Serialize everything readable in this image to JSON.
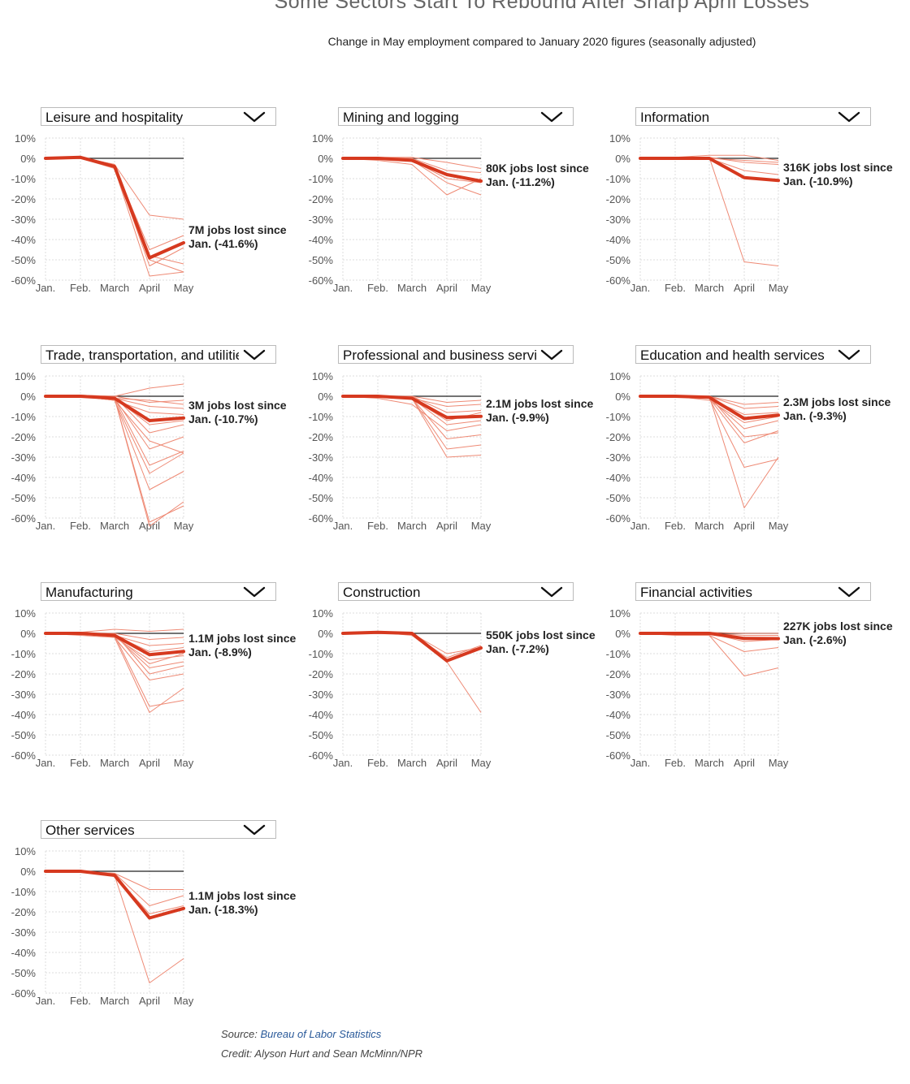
{
  "title": "Some Sectors Start To Rebound After Sharp April Losses",
  "subtitle": "Change in May employment compared to January 2020 figures (seasonally adjusted)",
  "colors": {
    "highlight": "#d6391f",
    "thin": "#ee8a75",
    "baseline": "#222222",
    "grid": "#dddddd",
    "axis_text": "#555555"
  },
  "icons": {
    "dropdown": "chevron-down-icon"
  },
  "source": {
    "label": "Source:",
    "link_text": "Bureau of Labor Statistics"
  },
  "credit": "Credit: Alyson Hurt and Sean McMinn/NPR",
  "chart_data": [
    {
      "type": "line",
      "dropdown_label": "Leisure and hospitality",
      "x": [
        "Jan.",
        "Feb.",
        "March",
        "April",
        "May"
      ],
      "y_ticks": [
        "10%",
        "0%",
        "-10%",
        "-20%",
        "-30%",
        "-40%",
        "-50%",
        "-60%"
      ],
      "ylim": [
        -60,
        10
      ],
      "annotation": {
        "line1": "7M jobs lost since",
        "line2": "Jan. (-41.6%)"
      },
      "highlight": [
        0,
        0.5,
        -4,
        -49,
        -41.6
      ],
      "subsectors": [
        [
          0,
          0.5,
          -3,
          -28,
          -30
        ],
        [
          0,
          0,
          -4,
          -45,
          -38
        ],
        [
          0,
          0.5,
          -4,
          -50,
          -56
        ],
        [
          0,
          0,
          -5,
          -58,
          -56
        ],
        [
          0,
          0.5,
          -3,
          -48,
          -52
        ],
        [
          0,
          0,
          -4,
          -53,
          -44
        ]
      ]
    },
    {
      "type": "line",
      "dropdown_label": "Mining and logging",
      "x": [
        "Jan.",
        "Feb.",
        "March",
        "April",
        "May"
      ],
      "y_ticks": [
        "10%",
        "0%",
        "-10%",
        "-20%",
        "-30%",
        "-40%",
        "-50%",
        "-60%"
      ],
      "ylim": [
        -60,
        10
      ],
      "annotation": {
        "line1": "80K jobs lost since",
        "line2": "Jan. (-11.2%)"
      },
      "highlight": [
        0,
        0,
        -1,
        -8,
        -11.2
      ],
      "subsectors": [
        [
          0,
          0.5,
          0.5,
          -2,
          -5
        ],
        [
          0,
          -1,
          -3,
          -18,
          -10
        ],
        [
          0,
          0,
          -1,
          -12,
          -18
        ],
        [
          0,
          0.5,
          0,
          -6,
          -7
        ],
        [
          0,
          0,
          -1,
          -10,
          -12
        ]
      ]
    },
    {
      "type": "line",
      "dropdown_label": "Information",
      "x": [
        "Jan.",
        "Feb.",
        "March",
        "April",
        "May"
      ],
      "y_ticks": [
        "10%",
        "0%",
        "-10%",
        "-20%",
        "-30%",
        "-40%",
        "-50%",
        "-60%"
      ],
      "ylim": [
        -60,
        10
      ],
      "annotation": {
        "line1": "316K jobs lost since",
        "line2": "Jan. (-10.9%)"
      },
      "highlight": [
        0,
        0,
        0,
        -9.5,
        -10.9
      ],
      "subsectors": [
        [
          0,
          0,
          0.5,
          -51,
          -53
        ],
        [
          0,
          0.5,
          1.5,
          1.5,
          -1
        ],
        [
          0,
          0,
          0.5,
          -2,
          -3
        ],
        [
          0,
          0,
          0,
          -6,
          -8
        ],
        [
          0,
          0,
          0,
          -1,
          -2
        ]
      ]
    },
    {
      "type": "line",
      "dropdown_label": "Trade, transportation, and utilities",
      "x": [
        "Jan.",
        "Feb.",
        "March",
        "April",
        "May"
      ],
      "y_ticks": [
        "10%",
        "0%",
        "-10%",
        "-20%",
        "-30%",
        "-40%",
        "-50%",
        "-60%"
      ],
      "ylim": [
        -60,
        10
      ],
      "annotation": {
        "line1": "3M jobs lost since",
        "line2": "Jan. (-10.7%)"
      },
      "highlight": [
        0,
        0,
        -1,
        -12,
        -10.7
      ],
      "subsectors": [
        [
          0,
          0.5,
          0,
          4,
          6
        ],
        [
          0,
          0,
          -1,
          -2,
          -4
        ],
        [
          0,
          0,
          -1,
          -5,
          -6
        ],
        [
          0,
          0.5,
          -2,
          -8,
          -9
        ],
        [
          0,
          0,
          -1,
          -14,
          -12
        ],
        [
          0,
          0,
          -2,
          -22,
          -28
        ],
        [
          0,
          0,
          -1,
          -34,
          -27
        ],
        [
          0,
          0,
          -2,
          -46,
          -37
        ],
        [
          0,
          0,
          -1,
          -64,
          -52
        ],
        [
          0,
          0,
          -1,
          -62,
          -54
        ],
        [
          0,
          0.5,
          0,
          -18,
          -14
        ],
        [
          0,
          0,
          -1,
          -26,
          -20
        ],
        [
          0,
          0,
          -2,
          -38,
          -28
        ],
        [
          0,
          0,
          0,
          -3,
          -2
        ]
      ]
    },
    {
      "type": "line",
      "dropdown_label": "Professional and business services",
      "x": [
        "Jan.",
        "Feb.",
        "March",
        "April",
        "May"
      ],
      "y_ticks": [
        "10%",
        "0%",
        "-10%",
        "-20%",
        "-30%",
        "-40%",
        "-50%",
        "-60%"
      ],
      "ylim": [
        -60,
        10
      ],
      "annotation": {
        "line1": "2.1M jobs lost since",
        "line2": "Jan. (-9.9%)"
      },
      "highlight": [
        0,
        0,
        -1,
        -10.5,
        -9.9
      ],
      "subsectors": [
        [
          0,
          0,
          -1,
          -30,
          -29
        ],
        [
          0,
          0,
          -1,
          -26,
          -24
        ],
        [
          0,
          0,
          -1,
          -21,
          -19
        ],
        [
          0,
          -1,
          -4,
          -17,
          -14
        ],
        [
          0,
          0,
          -1,
          -14,
          -12
        ],
        [
          0,
          0,
          0,
          -8,
          -7
        ],
        [
          0,
          0,
          -1,
          -5,
          -4
        ],
        [
          0,
          0,
          0,
          -3,
          -2
        ],
        [
          0,
          0,
          -1,
          -12,
          -8
        ]
      ]
    },
    {
      "type": "line",
      "dropdown_label": "Education and health services",
      "x": [
        "Jan.",
        "Feb.",
        "March",
        "April",
        "May"
      ],
      "y_ticks": [
        "10%",
        "0%",
        "-10%",
        "-20%",
        "-30%",
        "-40%",
        "-50%",
        "-60%"
      ],
      "ylim": [
        -60,
        10
      ],
      "annotation": {
        "line1": "2.3M jobs lost since",
        "line2": "Jan. (-9.3%)"
      },
      "highlight": [
        0,
        0,
        -0.5,
        -11,
        -9.3
      ],
      "subsectors": [
        [
          0,
          0,
          0,
          -55,
          -30
        ],
        [
          0,
          0,
          -1,
          -35,
          -31
        ],
        [
          0,
          0,
          -1,
          -23,
          -17
        ],
        [
          0,
          0,
          -1,
          -16,
          -12
        ],
        [
          0,
          0,
          -1,
          -9,
          -8
        ],
        [
          0,
          0,
          0,
          -6,
          -5
        ],
        [
          0,
          0,
          -2,
          -13,
          -10
        ],
        [
          0,
          0,
          0,
          -4,
          -3
        ],
        [
          0,
          0,
          0,
          -20,
          -18
        ]
      ]
    },
    {
      "type": "line",
      "dropdown_label": "Manufacturing",
      "x": [
        "Jan.",
        "Feb.",
        "March",
        "April",
        "May"
      ],
      "y_ticks": [
        "10%",
        "0%",
        "-10%",
        "-20%",
        "-30%",
        "-40%",
        "-50%",
        "-60%"
      ],
      "ylim": [
        -60,
        10
      ],
      "annotation": {
        "line1": "1.1M jobs lost since",
        "line2": "Jan. (-8.9%)"
      },
      "highlight": [
        0,
        0,
        -1,
        -10.5,
        -8.9
      ],
      "subsectors": [
        [
          0,
          0.5,
          2,
          1,
          2
        ],
        [
          0,
          0,
          0,
          -3,
          -2
        ],
        [
          0,
          0,
          -1,
          -6,
          -5
        ],
        [
          0,
          0,
          -1,
          -9,
          -7
        ],
        [
          0,
          -1,
          -2,
          -13,
          -11
        ],
        [
          0,
          0,
          -1,
          -17,
          -14
        ],
        [
          0,
          0,
          -2,
          -23,
          -20
        ],
        [
          0,
          0,
          -1,
          -36,
          -33
        ],
        [
          0,
          0,
          -2,
          -39,
          -27
        ],
        [
          0,
          0,
          0,
          -20,
          -16
        ],
        [
          0,
          0,
          -1,
          -15,
          -10
        ]
      ]
    },
    {
      "type": "line",
      "dropdown_label": "Construction",
      "x": [
        "Jan.",
        "Feb.",
        "March",
        "April",
        "May"
      ],
      "y_ticks": [
        "10%",
        "0%",
        "-10%",
        "-20%",
        "-30%",
        "-40%",
        "-50%",
        "-60%"
      ],
      "ylim": [
        -60,
        10
      ],
      "annotation": {
        "line1": "550K jobs lost since",
        "line2": "Jan. (-7.2%)"
      },
      "highlight": [
        0,
        0.5,
        0,
        -13.5,
        -7.2
      ],
      "subsectors": [
        [
          0,
          0.5,
          -1,
          -14,
          -39
        ],
        [
          0,
          0,
          0,
          -10,
          -7
        ],
        [
          0,
          0.5,
          0,
          -12,
          -6
        ]
      ]
    },
    {
      "type": "line",
      "dropdown_label": "Financial activities",
      "x": [
        "Jan.",
        "Feb.",
        "March",
        "April",
        "May"
      ],
      "y_ticks": [
        "10%",
        "0%",
        "-10%",
        "-20%",
        "-30%",
        "-40%",
        "-50%",
        "-60%"
      ],
      "ylim": [
        -60,
        10
      ],
      "annotation": {
        "line1": "227K jobs lost since",
        "line2": "Jan. (-2.6%)"
      },
      "highlight": [
        0,
        0,
        0,
        -2.5,
        -2.6
      ],
      "subsectors": [
        [
          0,
          0,
          -1,
          -21,
          -17
        ],
        [
          0,
          -1,
          -1,
          -9,
          -7
        ],
        [
          0,
          0,
          0,
          -4,
          -3
        ],
        [
          0,
          0,
          0,
          -1,
          -1
        ],
        [
          0,
          0.5,
          0.5,
          0,
          0
        ]
      ]
    },
    {
      "type": "line",
      "dropdown_label": "Other services",
      "x": [
        "Jan.",
        "Feb.",
        "March",
        "April",
        "May"
      ],
      "y_ticks": [
        "10%",
        "0%",
        "-10%",
        "-20%",
        "-30%",
        "-40%",
        "-50%",
        "-60%"
      ],
      "ylim": [
        -60,
        10
      ],
      "annotation": {
        "line1": "1.1M jobs lost since",
        "line2": "Jan. (-18.3%)"
      },
      "highlight": [
        0,
        0,
        -2,
        -23,
        -18.3
      ],
      "subsectors": [
        [
          0,
          0,
          -2,
          -55,
          -43
        ],
        [
          0,
          0,
          -1,
          -9,
          -9
        ],
        [
          0,
          0,
          -1,
          -17,
          -12
        ],
        [
          0,
          0,
          -2,
          -21,
          -17
        ]
      ]
    }
  ]
}
